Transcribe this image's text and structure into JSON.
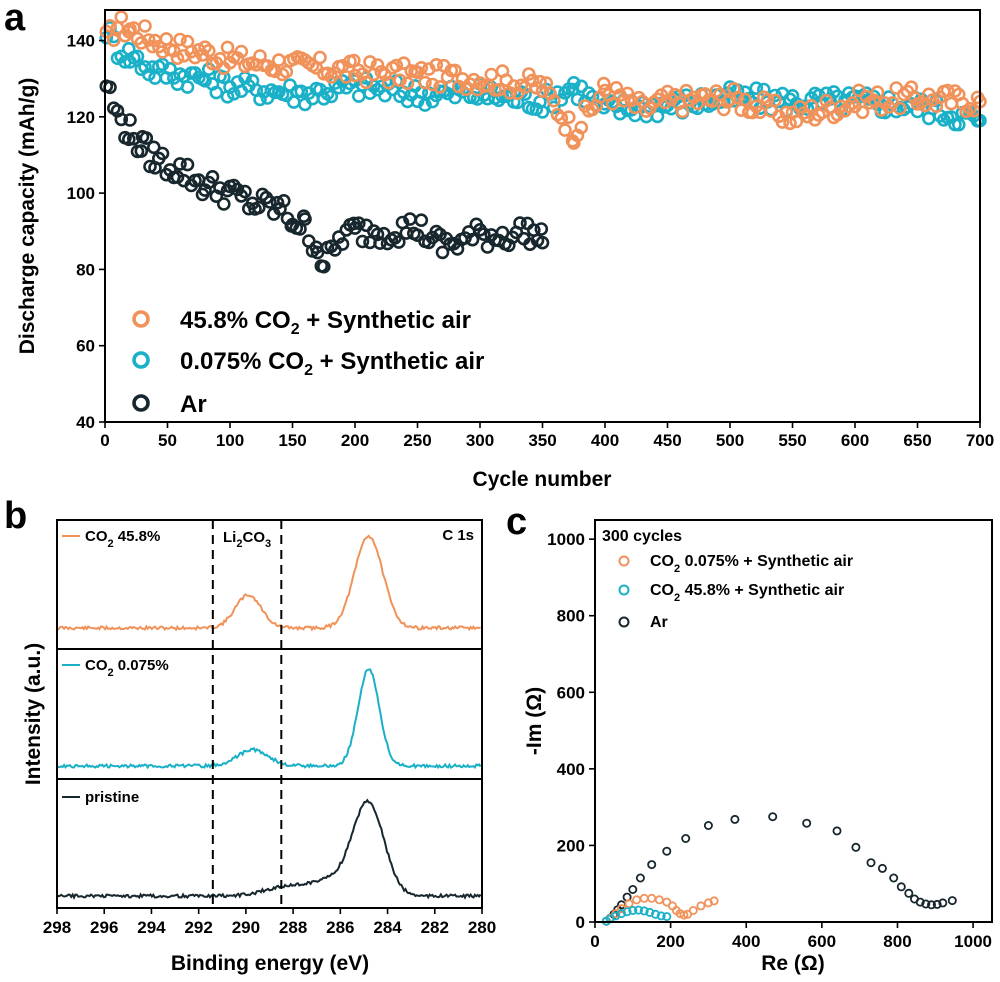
{
  "colors": {
    "orange": "#f0925a",
    "cyan": "#1ab0c8",
    "dark": "#17272d"
  },
  "panels": {
    "a": "a",
    "b": "b",
    "c": "c"
  },
  "chart_data": [
    {
      "panel": "a",
      "type": "scatter",
      "xlabel": "Cycle number",
      "ylabel": "Discharge capacity (mAh/g)",
      "xlim": [
        0,
        700
      ],
      "ylim": [
        40,
        148
      ],
      "xticks": [
        0,
        50,
        100,
        150,
        200,
        250,
        300,
        350,
        400,
        450,
        500,
        550,
        600,
        650,
        700
      ],
      "yticks": [
        40,
        60,
        80,
        100,
        120,
        140
      ],
      "legend": {
        "placement": "lower-left",
        "entries": [
          {
            "pre": "45.8% CO",
            "sub": "2",
            "post": " + Synthetic air",
            "color": "orange"
          },
          {
            "pre": "0.075% CO",
            "sub": "2",
            "post": " + Synthetic air",
            "color": "cyan"
          },
          {
            "pre": "Ar",
            "sub": "",
            "post": "",
            "color": "dark"
          }
        ]
      },
      "series": [
        {
          "color": "orange",
          "marker": "open-circle",
          "x": [
            1,
            10,
            20,
            40,
            60,
            80,
            100,
            130,
            160,
            200,
            250,
            300,
            350,
            375,
            400,
            430,
            450,
            500,
            550,
            600,
            650,
            700
          ],
          "y": [
            140,
            144,
            143,
            140,
            138,
            137,
            135,
            134,
            133,
            132,
            131,
            130,
            128,
            116,
            127,
            122,
            124,
            125,
            120,
            124,
            125,
            124
          ]
        },
        {
          "color": "cyan",
          "marker": "open-circle",
          "x": [
            1,
            10,
            20,
            40,
            60,
            80,
            100,
            130,
            160,
            200,
            250,
            300,
            350,
            375,
            400,
            450,
            500,
            550,
            600,
            650,
            700
          ],
          "y": [
            143,
            138,
            136,
            132,
            131,
            130,
            128,
            127,
            126,
            128,
            126,
            126,
            124,
            128,
            122,
            123,
            125,
            124,
            124,
            123,
            119
          ]
        },
        {
          "color": "dark",
          "marker": "open-circle",
          "x": [
            1,
            10,
            20,
            30,
            40,
            60,
            80,
            100,
            120,
            140,
            150,
            160,
            170,
            175,
            190,
            200,
            220,
            250,
            270,
            300,
            320,
            340,
            350
          ],
          "y": [
            129,
            120,
            116,
            112,
            109,
            106,
            102,
            100,
            97,
            96,
            93,
            91,
            86,
            81,
            89,
            90,
            90,
            91,
            86,
            89,
            89,
            90,
            87
          ]
        }
      ]
    },
    {
      "panel": "b",
      "type": "line",
      "xlabel": "Binding energy (eV)",
      "ylabel": "Intensity (a.u.)",
      "xlim": [
        298,
        280
      ],
      "xticks": [
        298,
        296,
        294,
        292,
        290,
        288,
        286,
        284,
        282,
        280
      ],
      "annotation_corner": "C 1s",
      "annotation_band": {
        "pre": "Li",
        "sub1": "2",
        "mid": "CO",
        "sub2": "3",
        "x_range": [
          291.4,
          288.5
        ]
      },
      "series": [
        {
          "label_pre": "CO",
          "label_sub": "2",
          "label_post": " 45.8%",
          "color": "orange",
          "peaks": [
            {
              "center": 289.9,
              "height": 0.33,
              "width": 0.55
            },
            {
              "center": 284.8,
              "height": 0.92,
              "width": 0.6
            }
          ]
        },
        {
          "label_pre": "CO",
          "label_sub": "2",
          "label_post": " 0.075%",
          "color": "cyan",
          "peaks": [
            {
              "center": 289.7,
              "height": 0.16,
              "width": 0.65
            },
            {
              "center": 284.8,
              "height": 0.95,
              "width": 0.45
            }
          ]
        },
        {
          "label_pre": "pristine",
          "label_sub": "",
          "label_post": "",
          "color": "dark",
          "peaks": [
            {
              "center": 288.6,
              "height": 0.07,
              "width": 0.8
            },
            {
              "center": 284.8,
              "height": 0.95,
              "width": 0.65
            },
            {
              "center": 286.3,
              "height": 0.18,
              "width": 1.2
            }
          ]
        }
      ]
    },
    {
      "panel": "c",
      "type": "scatter",
      "xlabel": "Re (Ω)",
      "ylabel": "-Im (Ω)",
      "xlim": [
        0,
        1050
      ],
      "ylim": [
        0,
        1050
      ],
      "xticks": [
        0,
        200,
        400,
        600,
        800,
        1000
      ],
      "yticks": [
        0,
        200,
        400,
        600,
        800,
        1000
      ],
      "legend_title": "300 cycles",
      "legend": {
        "placement": "top-left",
        "entries": [
          {
            "pre": "CO",
            "sub": "2",
            "post": " 0.075% + Synthetic air",
            "color": "orange"
          },
          {
            "pre": "CO",
            "sub": "2",
            "post": " 45.8% + Synthetic air",
            "color": "cyan"
          },
          {
            "pre": "Ar",
            "sub": "",
            "post": "",
            "color": "dark"
          }
        ]
      },
      "series": [
        {
          "color": "orange",
          "marker": "open-circle",
          "x": [
            30,
            40,
            55,
            70,
            90,
            110,
            130,
            150,
            170,
            190,
            205,
            215,
            225,
            235,
            245,
            260,
            280,
            300,
            315
          ],
          "y": [
            2,
            10,
            22,
            35,
            48,
            58,
            62,
            62,
            58,
            52,
            42,
            30,
            22,
            18,
            20,
            30,
            42,
            50,
            55
          ]
        },
        {
          "color": "cyan",
          "marker": "open-circle",
          "x": [
            30,
            40,
            55,
            70,
            85,
            100,
            115,
            130,
            145,
            160,
            175,
            190
          ],
          "y": [
            2,
            8,
            16,
            22,
            27,
            30,
            31,
            29,
            25,
            20,
            16,
            14
          ]
        },
        {
          "color": "dark",
          "marker": "open-circle",
          "x": [
            30,
            40,
            50,
            60,
            70,
            85,
            100,
            120,
            150,
            190,
            240,
            300,
            370,
            470,
            560,
            640,
            690,
            730,
            760,
            790,
            810,
            830,
            845,
            860,
            875,
            890,
            905,
            920,
            945
          ],
          "y": [
            2,
            10,
            20,
            32,
            45,
            65,
            85,
            115,
            150,
            185,
            218,
            252,
            268,
            275,
            258,
            238,
            195,
            155,
            140,
            115,
            92,
            75,
            60,
            52,
            47,
            45,
            46,
            50,
            56
          ]
        }
      ]
    }
  ]
}
